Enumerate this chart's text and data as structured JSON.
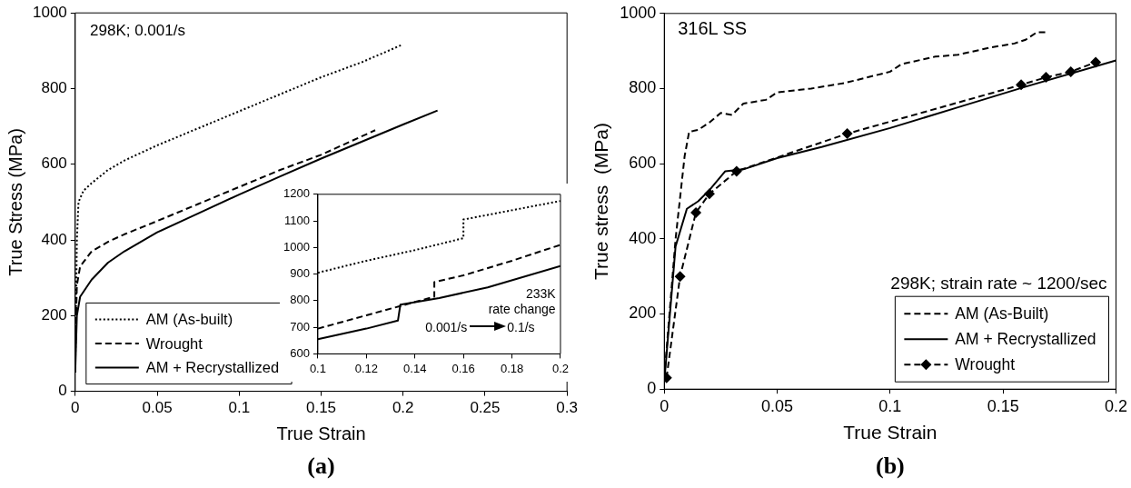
{
  "chart_data": [
    {
      "type": "line",
      "xlabel": "True Strain",
      "ylabel": "True Stress (MPa)",
      "xlim": [
        0,
        0.3
      ],
      "ylim": [
        0,
        1000
      ],
      "xticks": [
        0,
        0.05,
        0.1,
        0.15,
        0.2,
        0.25,
        0.3
      ],
      "yticks": [
        0,
        200,
        400,
        600,
        800,
        1000
      ],
      "legend": "bottom left",
      "annotations": [
        "298K;  0.001/s",
        "(a)"
      ],
      "series": [
        {
          "name": "AM (As-built)",
          "color": "#000000",
          "line_style": "dotted",
          "x": [
            0,
            0.001,
            0.002,
            0.005,
            0.01,
            0.02,
            0.03,
            0.05,
            0.075,
            0.1,
            0.125,
            0.15,
            0.175,
            0.199
          ],
          "values": [
            50,
            400,
            500,
            530,
            550,
            585,
            610,
            650,
            695,
            740,
            785,
            830,
            870,
            915
          ]
        },
        {
          "name": "Wrought",
          "color": "#000000",
          "line_style": "dashed",
          "x": [
            0,
            0.001,
            0.003,
            0.01,
            0.02,
            0.03,
            0.05,
            0.075,
            0.1,
            0.125,
            0.15,
            0.183
          ],
          "values": [
            100,
            280,
            330,
            370,
            395,
            415,
            450,
            495,
            540,
            585,
            625,
            690
          ]
        },
        {
          "name": "AM + Recrystallized",
          "color": "#000000",
          "line_style": "solid",
          "x": [
            0,
            0.001,
            0.003,
            0.01,
            0.02,
            0.03,
            0.05,
            0.075,
            0.1,
            0.125,
            0.15,
            0.175,
            0.2,
            0.221
          ],
          "values": [
            50,
            200,
            250,
            295,
            340,
            370,
            420,
            470,
            520,
            568,
            615,
            660,
            705,
            742
          ]
        }
      ]
    },
    {
      "type": "line",
      "xlim": [
        0.1,
        0.2
      ],
      "ylim": [
        600,
        1200
      ],
      "xticks": [
        0.1,
        0.12,
        0.14,
        0.16,
        0.18,
        0.2
      ],
      "yticks": [
        600,
        700,
        800,
        900,
        1000,
        1100,
        1200
      ],
      "annotations": [
        "233K",
        "rate change",
        "0.001/s",
        "0.1/s"
      ],
      "series": [
        {
          "color": "#000000",
          "line_style": "dotted",
          "x": [
            0.1,
            0.12,
            0.14,
            0.16,
            0.16,
            0.18,
            0.2
          ],
          "values": [
            905,
            950,
            990,
            1035,
            1105,
            1140,
            1175
          ]
        },
        {
          "color": "#000000",
          "line_style": "dashed",
          "x": [
            0.1,
            0.12,
            0.14,
            0.148,
            0.148,
            0.16,
            0.18,
            0.2
          ],
          "values": [
            695,
            745,
            795,
            815,
            870,
            895,
            950,
            1010
          ]
        },
        {
          "color": "#000000",
          "line_style": "solid",
          "x": [
            0.1,
            0.12,
            0.133,
            0.134,
            0.15,
            0.17,
            0.2
          ],
          "values": [
            655,
            695,
            725,
            785,
            810,
            850,
            930
          ]
        }
      ]
    },
    {
      "type": "line",
      "xlabel": "True Strain",
      "ylabel": "True stress  (MPa)",
      "xlim": [
        0,
        0.2
      ],
      "ylim": [
        0,
        1000
      ],
      "xticks": [
        0,
        0.05,
        0.1,
        0.15,
        0.2
      ],
      "yticks": [
        0,
        200,
        400,
        600,
        800,
        1000
      ],
      "legend": "bottom right",
      "annotations": [
        "316L SS",
        "298K;  strain rate ~ 1200/sec",
        "(b)"
      ],
      "series": [
        {
          "name": "AM (As-Built)",
          "color": "#000000",
          "line_style": "dashed",
          "x": [
            0,
            0.005,
            0.009,
            0.011,
            0.015,
            0.02,
            0.025,
            0.03,
            0.035,
            0.045,
            0.05,
            0.065,
            0.08,
            0.1,
            0.105,
            0.12,
            0.13,
            0.145,
            0.155,
            0.16,
            0.165,
            0.17
          ],
          "values": [
            30,
            400,
            620,
            685,
            690,
            710,
            735,
            730,
            760,
            770,
            790,
            800,
            815,
            845,
            865,
            885,
            890,
            910,
            920,
            930,
            950,
            950
          ]
        },
        {
          "name": "AM + Recrystallized",
          "color": "#000000",
          "line_style": "solid",
          "x": [
            0,
            0.005,
            0.01,
            0.015,
            0.02,
            0.027,
            0.035,
            0.05,
            0.07,
            0.1,
            0.13,
            0.16,
            0.2
          ],
          "values": [
            20,
            380,
            480,
            500,
            530,
            580,
            585,
            615,
            645,
            695,
            750,
            805,
            875
          ]
        },
        {
          "name": "Wrought",
          "color": "#000000",
          "line_style": "dashed",
          "marker": "diamond",
          "x": [
            0.001,
            0.007,
            0.014,
            0.02,
            0.032,
            0.081,
            0.158,
            0.169,
            0.18,
            0.191
          ],
          "values": [
            30,
            300,
            470,
            520,
            580,
            680,
            810,
            830,
            845,
            870
          ]
        }
      ]
    }
  ]
}
